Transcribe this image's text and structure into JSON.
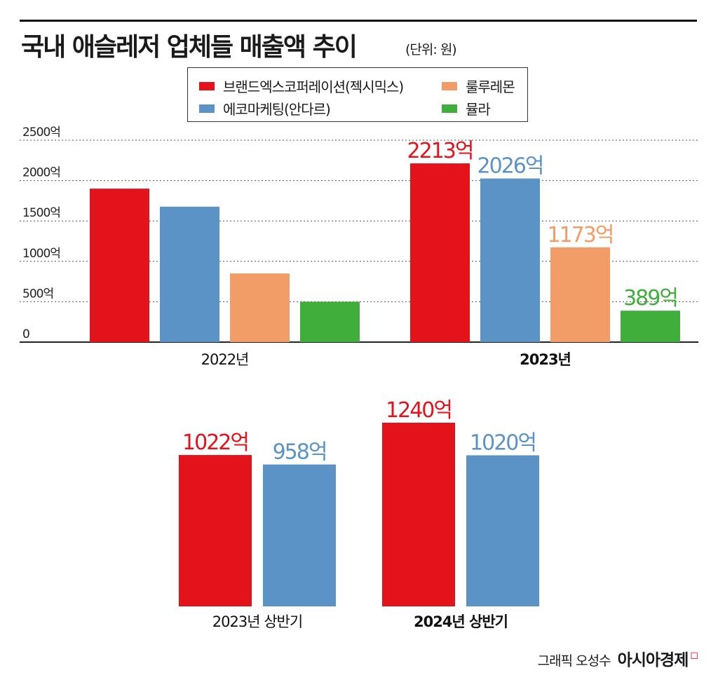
{
  "title": "국내 애슬레저 업체들 매출액 추이",
  "unit": "(단위: 원)",
  "legend": [
    {
      "label": "브랜드엑스코퍼레이션(젝시믹스)",
      "color": "#e3121b"
    },
    {
      "label": "룰루레몬",
      "color": "#f29d67"
    },
    {
      "label": "에코마케팅(안다르)",
      "color": "#5b93c6"
    },
    {
      "label": "뮬라",
      "color": "#3fae3a"
    }
  ],
  "credit": {
    "author": "그래픽 오성수",
    "brand": "아시아경제"
  },
  "chart_data": [
    {
      "type": "bar",
      "categories": [
        "2022년",
        "2023년"
      ],
      "series": [
        {
          "name": "브랜드엑스코퍼레이션(젝시믹스)",
          "color": "#e3121b",
          "values": [
            1900,
            2213
          ],
          "labels": [
            "",
            "2213억"
          ]
        },
        {
          "name": "에코마케팅(안다르)",
          "color": "#5b93c6",
          "values": [
            1677,
            2026
          ],
          "labels": [
            "",
            "2026억"
          ]
        },
        {
          "name": "룰루레몬",
          "color": "#f29d67",
          "values": [
            850,
            1173
          ],
          "labels": [
            "",
            "1173억"
          ]
        },
        {
          "name": "뮬라",
          "color": "#3fae3a",
          "values": [
            500,
            389
          ],
          "labels": [
            "",
            "389억"
          ]
        }
      ],
      "yticks": [
        {
          "value": 0,
          "label": "0"
        },
        {
          "value": 500,
          "label": "500억"
        },
        {
          "value": 1000,
          "label": "1000억"
        },
        {
          "value": 1500,
          "label": "1500억"
        },
        {
          "value": 2000,
          "label": "2000억"
        },
        {
          "value": 2500,
          "label": "2500억"
        }
      ],
      "ylim": [
        0,
        2500
      ],
      "grid": true
    },
    {
      "type": "bar",
      "categories": [
        "2023년 상반기",
        "2024년 상반기"
      ],
      "series": [
        {
          "name": "브랜드엑스코퍼레이션(젝시믹스)",
          "color": "#e3121b",
          "values": [
            1022,
            1240
          ],
          "labels": [
            "1022억",
            "1240억"
          ]
        },
        {
          "name": "에코마케팅(안다르)",
          "color": "#5b93c6",
          "values": [
            958,
            1020
          ],
          "labels": [
            "958억",
            "1020억"
          ]
        }
      ]
    }
  ]
}
